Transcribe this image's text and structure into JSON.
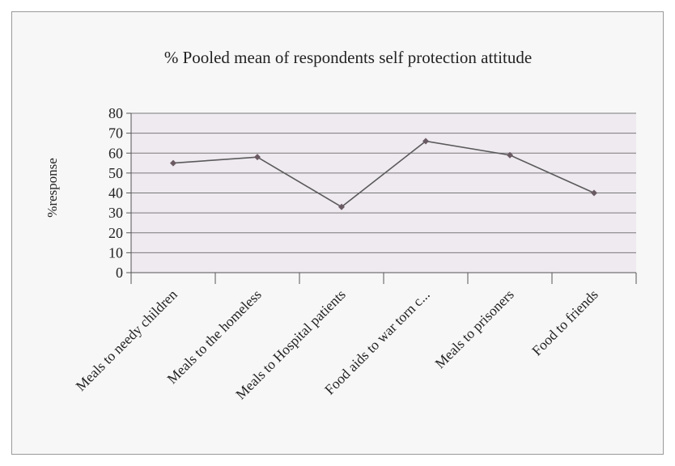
{
  "chart_data": {
    "type": "line",
    "title": "% Pooled mean of respondents self protection attitude",
    "ylabel": "%response",
    "xlabel": "",
    "categories": [
      "Meals to needy children",
      "Meals to the homeless",
      "Meals to Hospital patients",
      "Food aids to war torn c...",
      "Meals to prisoners",
      "Food to friends"
    ],
    "series": [
      {
        "values": [
          55,
          58,
          33,
          66,
          59,
          40
        ]
      }
    ],
    "ylim": [
      0,
      80
    ],
    "yticks": [
      0,
      10,
      20,
      30,
      40,
      50,
      60,
      70,
      80
    ],
    "grid": true,
    "legend": "none",
    "colors": {
      "line": "#5a5a5a",
      "marker": "#6a5a62",
      "plot_background": "#efe9f0",
      "gridline": "#7a7a7a"
    }
  }
}
